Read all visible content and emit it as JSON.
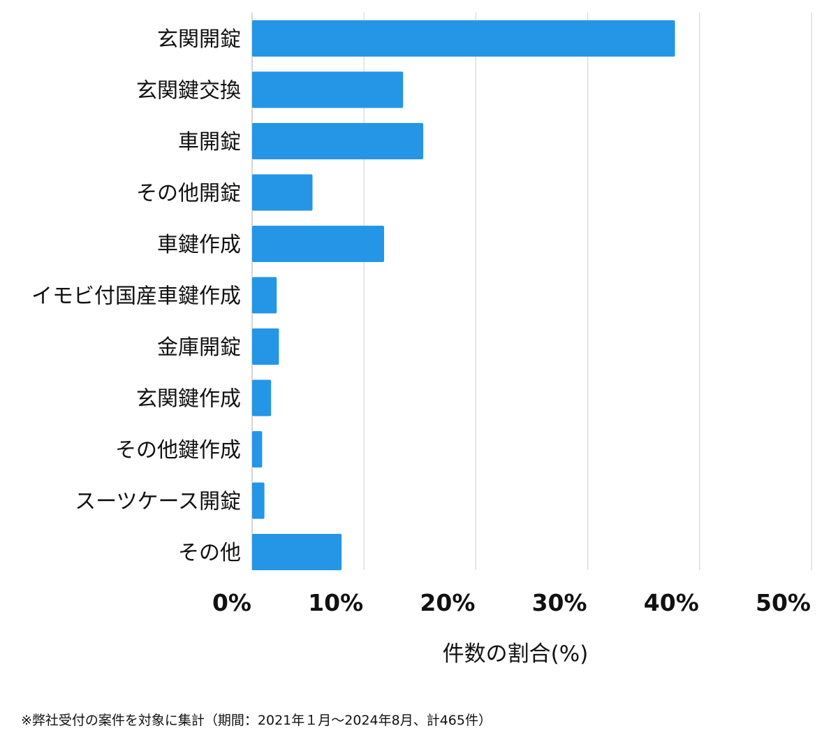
{
  "chart_data": {
    "type": "bar",
    "orientation": "horizontal",
    "categories": [
      "玄関開錠",
      "玄関鍵交換",
      "車開錠",
      "その他開錠",
      "車鍵作成",
      "イモビ付国産車鍵作成",
      "金庫開錠",
      "玄関鍵作成",
      "その他鍵作成",
      "スーツケース開錠",
      "その他"
    ],
    "values": [
      37.8,
      13.5,
      15.3,
      5.4,
      11.8,
      2.2,
      2.4,
      1.7,
      0.9,
      1.1,
      8.0
    ],
    "title": "",
    "xlabel": "件数の割合(%)",
    "ylabel": "",
    "xlim": [
      0,
      50
    ],
    "xticks": [
      0,
      10,
      20,
      30,
      40,
      50
    ],
    "xtick_labels": [
      "0%",
      "10%",
      "20%",
      "30%",
      "40%",
      "50%"
    ],
    "grid": "vertical",
    "legend": "none",
    "bar_color": "#2596e6"
  },
  "footnote": "※弊社受付の案件を対象に集計（期間：2021年１月〜2024年8月、計465件）"
}
